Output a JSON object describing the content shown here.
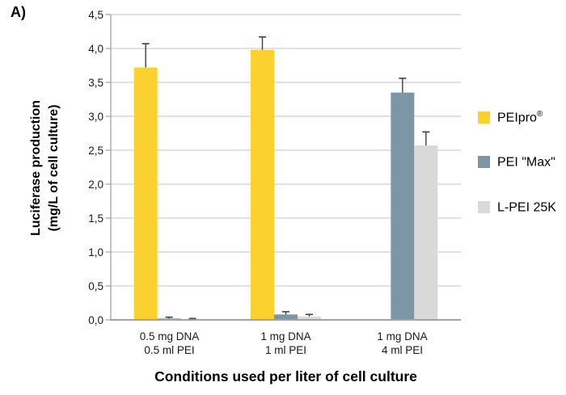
{
  "figure_label": "A)",
  "chart_data": {
    "type": "bar",
    "title": "",
    "xlabel": "Conditions used per liter of cell culture",
    "ylabel": "Luciferase production (mg/L of cell culture)",
    "ylabel_line1": "Luciferase production",
    "ylabel_line2": "(mg/L of cell culture)",
    "ylim": [
      0,
      4.5
    ],
    "ytick_step": 0.5,
    "ytick_labels": [
      "0,0",
      "0,5",
      "1,0",
      "1,5",
      "2,0",
      "2,5",
      "3,0",
      "3,5",
      "4,0",
      "4,5"
    ],
    "grid": true,
    "legend_position": "right",
    "categories": [
      [
        "0.5 mg DNA",
        "0.5 ml PEI"
      ],
      [
        "1 mg DNA",
        "1 ml PEI"
      ],
      [
        "1 mg DNA",
        "4 ml PEI"
      ]
    ],
    "series": [
      {
        "name": "PEIpro®",
        "color": "#FBD12F",
        "values": [
          3.72,
          3.98,
          null
        ],
        "errors_up": [
          0.35,
          0.19,
          null
        ]
      },
      {
        "name": "PEI \"Max\"",
        "color": "#7C96A5",
        "values": [
          0.02,
          0.08,
          3.35
        ],
        "errors_up": [
          0.02,
          0.04,
          0.21
        ]
      },
      {
        "name": "L-PEI 25K",
        "color": "#D9D9D9",
        "values": [
          0.01,
          0.05,
          2.57
        ],
        "errors_up": [
          0.01,
          0.03,
          0.2
        ]
      }
    ],
    "colors": {
      "gridline": "#C3C3C3",
      "axis": "#A3A3A3",
      "error_bar": "#3F3F3F",
      "tick_text": "#1a1a1a"
    }
  },
  "legend": {
    "items": [
      {
        "label": "PEIpro",
        "sup": "®"
      },
      {
        "label": "PEI \"Max\"",
        "sup": ""
      },
      {
        "label": "L-PEI 25K",
        "sup": ""
      }
    ]
  }
}
